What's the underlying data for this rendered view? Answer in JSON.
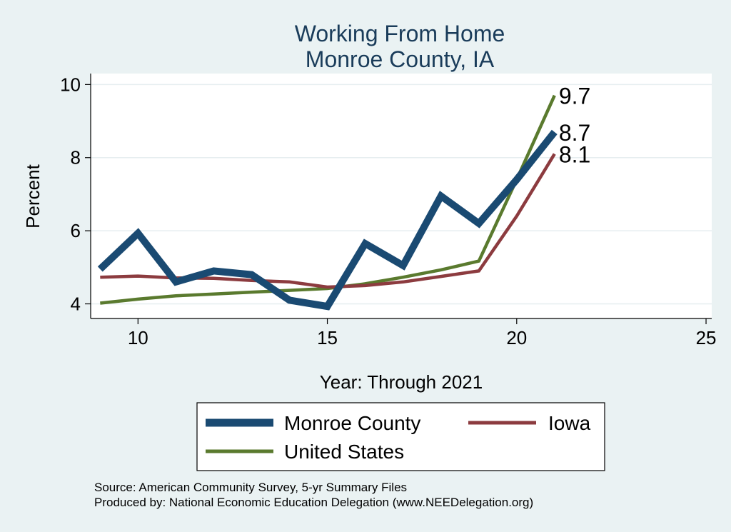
{
  "chart_data": {
    "type": "line",
    "title": [
      "Working From Home",
      "Monroe County, IA"
    ],
    "xlabel": "Year: Through 2021",
    "ylabel": "Percent",
    "xlim": [
      8.75,
      25.15
    ],
    "ylim": [
      3.6,
      10.3
    ],
    "xticks": [
      10,
      15,
      20,
      25
    ],
    "yticks": [
      4,
      6,
      8,
      10
    ],
    "grid": true,
    "series": [
      {
        "name": "Monroe County",
        "color": "#1a4a72",
        "width": "thick",
        "x": [
          9,
          10,
          11,
          12,
          13,
          14,
          15,
          16,
          17,
          18,
          19,
          20,
          21
        ],
        "y": [
          4.95,
          5.93,
          4.6,
          4.9,
          4.8,
          4.1,
          3.93,
          5.65,
          5.05,
          6.95,
          6.2,
          7.4,
          8.7
        ],
        "end_label": "8.7"
      },
      {
        "name": "Iowa",
        "color": "#8c3b3f",
        "width": "medium",
        "x": [
          9,
          10,
          11,
          12,
          13,
          14,
          15,
          16,
          17,
          18,
          19,
          20,
          21
        ],
        "y": [
          4.73,
          4.76,
          4.71,
          4.7,
          4.64,
          4.6,
          4.46,
          4.5,
          4.6,
          4.75,
          4.9,
          6.4,
          8.1
        ],
        "end_label": "8.1"
      },
      {
        "name": "United States",
        "color": "#5a7a2e",
        "width": "medium",
        "x": [
          9,
          10,
          11,
          12,
          13,
          14,
          15,
          16,
          17,
          18,
          19,
          20,
          21
        ],
        "y": [
          4.02,
          4.13,
          4.22,
          4.27,
          4.32,
          4.37,
          4.42,
          4.55,
          4.73,
          4.93,
          5.17,
          7.4,
          9.7
        ],
        "end_label": "9.7"
      }
    ],
    "legend": [
      "Monroe County",
      "Iowa",
      "United States"
    ],
    "legend_position": "bottom",
    "notes": [
      "Source: American Community Survey, 5-yr Summary Files",
      "Produced by: National Economic Education Delegation (www.NEEDelegation.org)"
    ]
  }
}
